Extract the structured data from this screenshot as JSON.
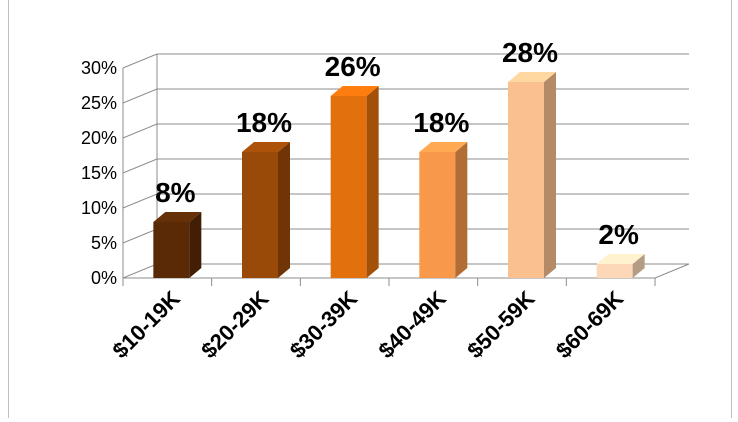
{
  "chart_data": {
    "type": "bar",
    "categories": [
      "$10-19K",
      "$20-29K",
      "$30-39K",
      "$40-49K",
      "$50-59K",
      "$60-69K"
    ],
    "values": [
      8,
      18,
      26,
      18,
      28,
      2
    ],
    "data_labels": [
      "8%",
      "18%",
      "26%",
      "18%",
      "28%",
      "2%"
    ],
    "colors": [
      "#5a2a06",
      "#9a4a08",
      "#e2700d",
      "#f7984a",
      "#fbc08f",
      "#fcd8b8"
    ],
    "ylim": [
      0,
      30
    ],
    "yticks": [
      "0%",
      "5%",
      "10%",
      "15%",
      "20%",
      "25%",
      "30%"
    ],
    "grid": true,
    "style": "3d-column"
  }
}
